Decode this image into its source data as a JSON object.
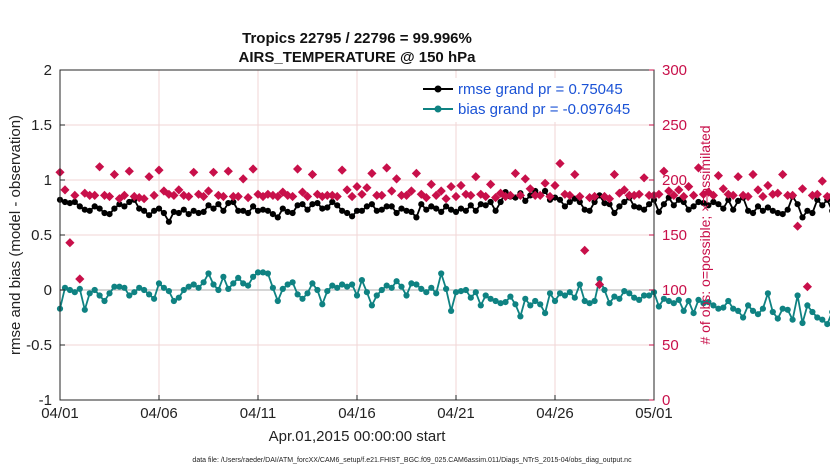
{
  "chart_data": {
    "type": "line",
    "title": "Tropics 22795 / 22796 = 99.996%",
    "subtitle": "AIRS_TEMPERATURE @ 150 hPa",
    "xlabel": "Apr.01,2015 00:00:00 start",
    "ylabel": "rmse and bias (model - observation)",
    "y2label": "# of obs: o=possible; ×=assimilated",
    "x_ticks": [
      "04/01",
      "04/06",
      "04/11",
      "04/16",
      "04/21",
      "04/26",
      "05/01"
    ],
    "x_range_days": [
      0,
      30
    ],
    "y_ticks": [
      "-1",
      "-0.5",
      "0",
      "0.5",
      "1",
      "1.5",
      "2"
    ],
    "ylim": [
      -1,
      2
    ],
    "y2_ticks": [
      "0",
      "50",
      "100",
      "150",
      "200",
      "250",
      "300"
    ],
    "y2lim": [
      0,
      300
    ],
    "legend_position": "top-right",
    "footnote": "data file: /Users/raeder/DAI/ATM_forcXX/CAM6_setup/f.e21.FHIST_BGC.f09_025.CAM6assim.011/Diags_NTrS_2015-04/obs_diag_output.nc",
    "x_step_days": 0.25,
    "series": [
      {
        "name": "rmse grand pr = 0.75045",
        "color": "#000000",
        "axis": "left",
        "marker": "circle",
        "values": [
          0.82,
          0.8,
          0.79,
          0.8,
          0.76,
          0.73,
          0.72,
          0.76,
          0.74,
          0.7,
          0.69,
          0.74,
          0.78,
          0.76,
          0.8,
          0.82,
          0.74,
          0.72,
          0.68,
          0.72,
          0.74,
          0.7,
          0.62,
          0.71,
          0.7,
          0.73,
          0.69,
          0.72,
          0.7,
          0.71,
          0.77,
          0.74,
          0.78,
          0.72,
          0.79,
          0.8,
          0.72,
          0.72,
          0.7,
          0.76,
          0.72,
          0.73,
          0.72,
          0.69,
          0.66,
          0.74,
          0.71,
          0.7,
          0.77,
          0.78,
          0.73,
          0.78,
          0.79,
          0.74,
          0.75,
          0.8,
          0.77,
          0.72,
          0.7,
          0.67,
          0.72,
          0.72,
          0.76,
          0.78,
          0.72,
          0.73,
          0.76,
          0.76,
          0.7,
          0.74,
          0.72,
          0.71,
          0.66,
          0.78,
          0.73,
          0.76,
          0.74,
          0.71,
          0.76,
          0.73,
          0.71,
          0.74,
          0.72,
          0.77,
          0.72,
          0.78,
          0.77,
          0.8,
          0.72,
          0.8,
          0.89,
          0.85,
          0.84,
          0.88,
          0.81,
          0.86,
          0.9,
          0.86,
          0.9,
          0.82,
          0.84,
          0.82,
          0.76,
          0.8,
          0.83,
          0.8,
          0.73,
          0.72,
          0.8,
          0.86,
          0.79,
          0.78,
          0.7,
          0.76,
          0.8,
          0.84,
          0.76,
          0.75,
          0.73,
          0.78,
          0.82,
          0.71,
          0.78,
          0.84,
          0.77,
          0.82,
          0.8,
          0.73,
          0.76,
          0.8,
          0.79,
          0.77,
          0.8,
          0.78,
          0.74,
          0.82,
          0.73,
          0.81,
          0.84,
          0.72,
          0.7,
          0.76,
          0.72,
          0.75,
          0.72,
          0.7,
          0.69,
          0.73,
          0.85,
          0.78,
          0.66,
          0.72,
          0.7,
          0.82,
          0.77,
          0.82,
          0.72,
          0.76,
          0.7,
          0.72,
          0.74,
          0.73,
          0.76,
          0.79,
          0.71,
          0.7,
          0.74,
          0.72,
          0.76,
          0.72,
          0.82,
          0.74,
          0.77,
          0.74,
          0.79,
          0.7,
          0.78,
          0.84,
          0.77,
          0.8,
          0.74,
          0.72,
          0.78,
          0.74,
          0.77,
          0.85,
          0.8,
          0.7,
          0.76,
          0.82,
          0.74,
          0.76,
          0.72,
          0.75,
          0.86,
          0.74,
          0.7,
          0.77,
          0.82,
          0.77,
          0.71,
          0.77,
          0.72
        ]
      },
      {
        "name": "bias grand pr = -0.097645",
        "color": "#0f8282",
        "axis": "left",
        "marker": "circle",
        "values": [
          -0.17,
          0.02,
          0.0,
          -0.02,
          0.01,
          -0.18,
          -0.03,
          0.0,
          -0.05,
          -0.1,
          -0.03,
          0.03,
          0.03,
          0.02,
          -0.05,
          -0.02,
          0.02,
          0.0,
          -0.04,
          -0.08,
          0.06,
          0.02,
          -0.01,
          -0.1,
          -0.07,
          0.0,
          0.03,
          0.05,
          0.02,
          0.07,
          0.15,
          0.05,
          0.0,
          0.12,
          0.01,
          0.06,
          0.11,
          0.06,
          0.04,
          0.12,
          0.16,
          0.16,
          0.15,
          0.02,
          -0.1,
          0.01,
          0.05,
          0.07,
          -0.04,
          -0.08,
          -0.03,
          0.06,
          0.0,
          -0.13,
          -0.01,
          0.04,
          0.02,
          0.05,
          0.03,
          0.05,
          -0.05,
          0.09,
          -0.02,
          -0.14,
          -0.05,
          0.0,
          0.04,
          0.02,
          0.08,
          0.03,
          -0.05,
          0.06,
          0.05,
          0.01,
          -0.02,
          0.02,
          -0.03,
          0.15,
          0.01,
          -0.19,
          -0.02,
          -0.01,
          0.0,
          -0.07,
          -0.02,
          -0.14,
          -0.05,
          -0.08,
          -0.1,
          -0.12,
          -0.11,
          -0.06,
          -0.13,
          -0.24,
          -0.08,
          -0.14,
          -0.1,
          -0.13,
          -0.21,
          -0.03,
          -0.1,
          -0.03,
          -0.05,
          -0.02,
          -0.07,
          0.05,
          -0.1,
          -0.12,
          -0.1,
          0.1,
          0.0,
          -0.12,
          -0.06,
          -0.08,
          -0.01,
          -0.03,
          -0.07,
          -0.09,
          -0.05,
          -0.05,
          -0.02,
          -0.15,
          -0.08,
          -0.1,
          -0.12,
          -0.09,
          -0.19,
          -0.1,
          -0.21,
          -0.09,
          -0.12,
          -0.11,
          -0.14,
          -0.17,
          -0.16,
          -0.1,
          -0.17,
          -0.19,
          -0.25,
          -0.14,
          -0.19,
          -0.22,
          -0.17,
          -0.03,
          -0.2,
          -0.26,
          -0.17,
          -0.18,
          -0.27,
          -0.05,
          -0.3,
          -0.14,
          -0.2,
          -0.25,
          -0.27,
          -0.31,
          -0.2,
          -0.33,
          -0.31,
          -0.3,
          -0.32,
          -0.3,
          -0.24,
          -0.19,
          -0.27,
          -0.37,
          -0.31,
          -0.22,
          -0.34,
          -0.28,
          -0.26,
          -0.22,
          -0.2,
          -0.22,
          -0.22,
          -0.17,
          -0.33,
          -0.25,
          -0.21,
          -0.2,
          -0.3,
          -0.12,
          -0.22,
          -0.07,
          -0.1,
          -0.1,
          -0.15,
          -0.08,
          -0.02,
          -0.05,
          -0.07,
          -0.03,
          -0.11,
          -0.05,
          0.03,
          -0.04,
          0.05,
          -0.22,
          -0.07,
          -0.17,
          0.04,
          -0.04,
          -0.05,
          -0.23,
          0.18,
          -0.2
        ]
      },
      {
        "name": "obs possible",
        "color": "#c8104a",
        "axis": "right",
        "marker": "diamond",
        "values": [
          207,
          191,
          143,
          186,
          110,
          188,
          186,
          186,
          212,
          186,
          185,
          205,
          183,
          186,
          208,
          185,
          184,
          183,
          203,
          186,
          209,
          190,
          187,
          186,
          191,
          186,
          185,
          207,
          187,
          185,
          190,
          207,
          186,
          185,
          208,
          185,
          185,
          201,
          184,
          210,
          187,
          185,
          187,
          186,
          185,
          189,
          186,
          185,
          210,
          189,
          185,
          205,
          187,
          185,
          186,
          186,
          185,
          209,
          191,
          185,
          194,
          187,
          193,
          206,
          186,
          186,
          211,
          190,
          201,
          186,
          186,
          190,
          206,
          187,
          184,
          196,
          186,
          190,
          183,
          194,
          185,
          195,
          187,
          186,
          203,
          187,
          185,
          196,
          184,
          188,
          185,
          186,
          206,
          186,
          201,
          192,
          186,
          186,
          197,
          185,
          195,
          215,
          187,
          186,
          205,
          185,
          136,
          184,
          185,
          105,
          185,
          183,
          205,
          188,
          191,
          186,
          186,
          187,
          202,
          186,
          186,
          187,
          208,
          190,
          186,
          191,
          185,
          194,
          186,
          211,
          187,
          189,
          186,
          204,
          192,
          187,
          186,
          203,
          186,
          185,
          205,
          191,
          185,
          195,
          187,
          188,
          205,
          186,
          186,
          158,
          192,
          103,
          186,
          187,
          199,
          185,
          186,
          186,
          192,
          185,
          186,
          206,
          188,
          185,
          190,
          186,
          185,
          206,
          187,
          186,
          197,
          192,
          186,
          185,
          206,
          185,
          185,
          202,
          186,
          187,
          186,
          187,
          200,
          186,
          193,
          187,
          185,
          187,
          185,
          187,
          193,
          186,
          187,
          211,
          190,
          185,
          186,
          198,
          185,
          202,
          186,
          184,
          193,
          207,
          193,
          204,
          185,
          191,
          187,
          187,
          205,
          186,
          186,
          182,
          186,
          188,
          195,
          0
        ]
      }
    ]
  }
}
